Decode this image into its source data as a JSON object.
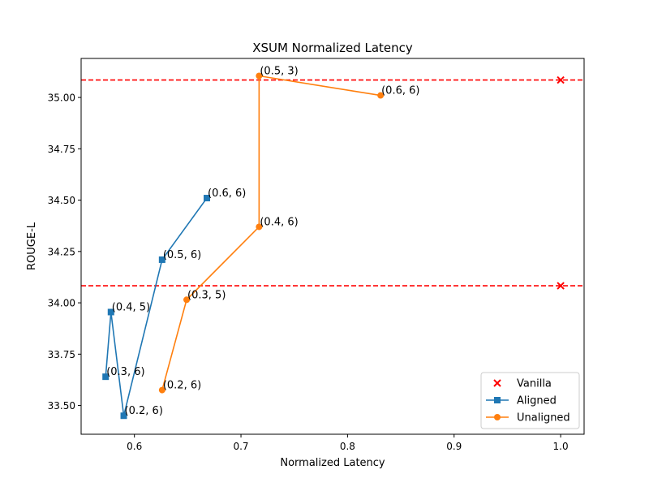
{
  "chart_data": {
    "type": "line",
    "title": "XSUM Normalized Latency",
    "xlabel": "Normalized Latency",
    "ylabel": "ROUGE-L",
    "xlim": [
      0.55,
      1.022
    ],
    "ylim": [
      33.36,
      35.19
    ],
    "x_ticks": [
      {
        "value": 0.6,
        "label": "0.6"
      },
      {
        "value": 0.7,
        "label": "0.7"
      },
      {
        "value": 0.8,
        "label": "0.8"
      },
      {
        "value": 0.9,
        "label": "0.9"
      },
      {
        "value": 1.0,
        "label": "1.0"
      }
    ],
    "y_ticks": [
      {
        "value": 33.5,
        "label": "33.50"
      },
      {
        "value": 33.75,
        "label": "33.75"
      },
      {
        "value": 34.0,
        "label": "34.00"
      },
      {
        "value": 34.25,
        "label": "34.25"
      },
      {
        "value": 34.5,
        "label": "34.50"
      },
      {
        "value": 34.75,
        "label": "34.75"
      },
      {
        "value": 35.0,
        "label": "35.00"
      }
    ],
    "hlines": [
      {
        "y": 35.085,
        "color": "#ff0000",
        "style": "dashed"
      },
      {
        "y": 34.083,
        "color": "#ff0000",
        "style": "dashed"
      }
    ],
    "grid": false,
    "legend_position": "lower-right",
    "series": [
      {
        "name": "Vanilla",
        "kind": "scatter",
        "marker": "x",
        "color": "#ff0000",
        "points": [
          {
            "x": 1.0,
            "y": 35.085
          },
          {
            "x": 1.0,
            "y": 34.083
          }
        ]
      },
      {
        "name": "Aligned",
        "kind": "line",
        "marker": "square",
        "color": "#1f77b4",
        "points": [
          {
            "x": 0.668,
            "y": 34.51,
            "label": "(0.6, 6)"
          },
          {
            "x": 0.626,
            "y": 34.21,
            "label": "(0.5, 6)"
          },
          {
            "x": 0.59,
            "y": 33.45,
            "label": "(0.2, 6)"
          },
          {
            "x": 0.578,
            "y": 33.955,
            "label": "(0.4, 5)"
          },
          {
            "x": 0.573,
            "y": 33.64,
            "label": "(0.3, 6)"
          }
        ]
      },
      {
        "name": "Unaligned",
        "kind": "line",
        "marker": "circle",
        "color": "#ff7f0e",
        "points": [
          {
            "x": 0.831,
            "y": 35.01,
            "label": "(0.6, 6)"
          },
          {
            "x": 0.717,
            "y": 35.105,
            "label": "(0.5, 3)"
          },
          {
            "x": 0.717,
            "y": 34.37,
            "label": "(0.4, 6)"
          },
          {
            "x": 0.649,
            "y": 34.015,
            "label": "(0.3, 5)"
          },
          {
            "x": 0.626,
            "y": 33.575,
            "label": "(0.2, 6)"
          }
        ]
      }
    ]
  }
}
